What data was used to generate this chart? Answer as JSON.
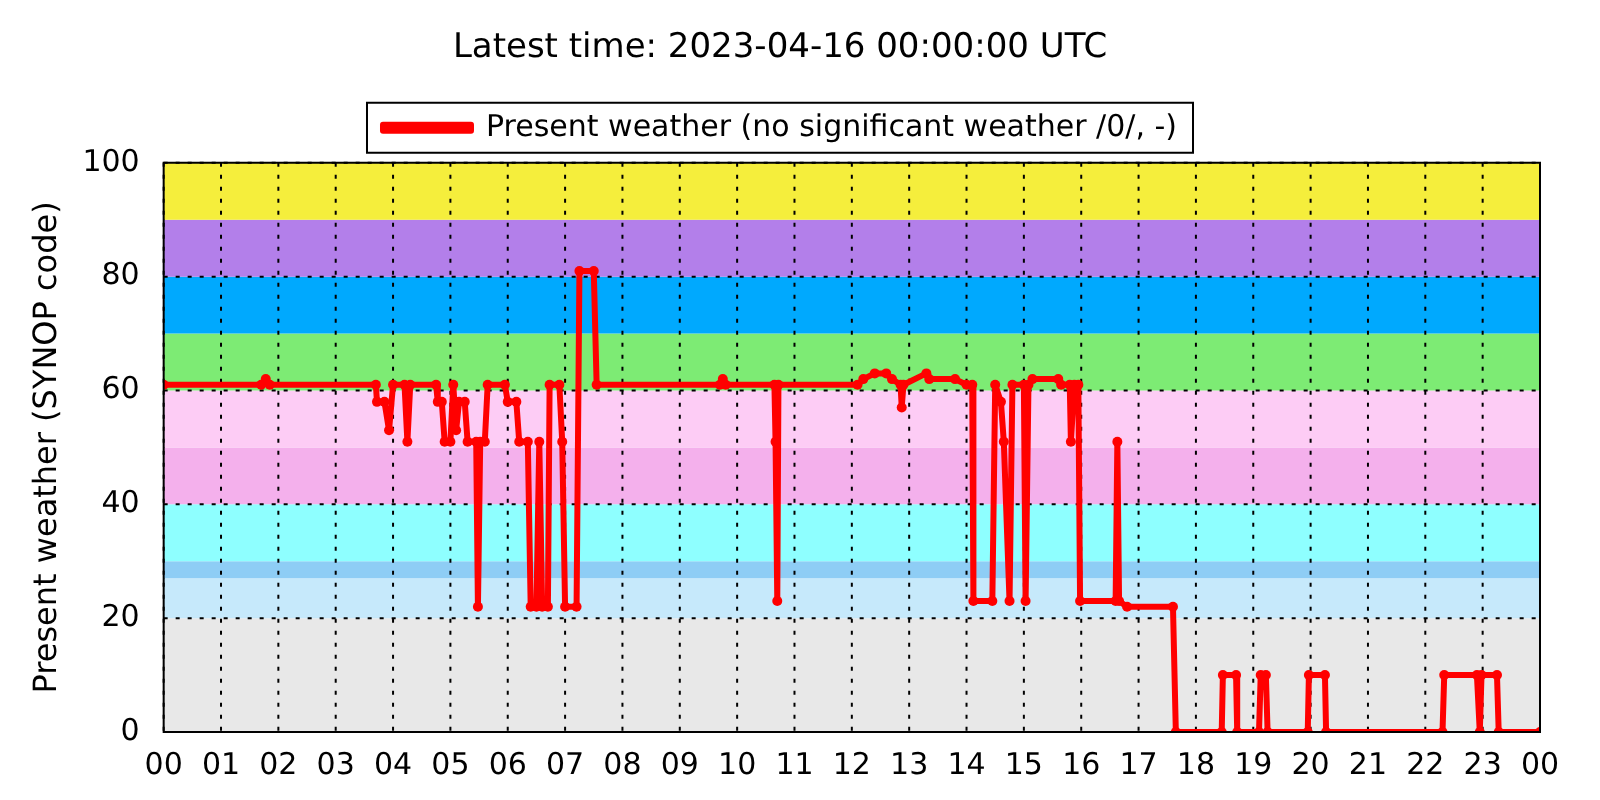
{
  "chart_data": {
    "type": "line",
    "title": "Latest time: 2023-04-16 00:00:00 UTC",
    "ylabel": "Present weather (SYNOP code)",
    "xlim": [
      0,
      24
    ],
    "xticks": [
      {
        "value": 0,
        "label": "00"
      },
      {
        "value": 1,
        "label": "01"
      },
      {
        "value": 2,
        "label": "02"
      },
      {
        "value": 3,
        "label": "03"
      },
      {
        "value": 4,
        "label": "04"
      },
      {
        "value": 5,
        "label": "05"
      },
      {
        "value": 6,
        "label": "06"
      },
      {
        "value": 7,
        "label": "07"
      },
      {
        "value": 8,
        "label": "08"
      },
      {
        "value": 9,
        "label": "09"
      },
      {
        "value": 10,
        "label": "10"
      },
      {
        "value": 11,
        "label": "11"
      },
      {
        "value": 12,
        "label": "12"
      },
      {
        "value": 13,
        "label": "13"
      },
      {
        "value": 14,
        "label": "14"
      },
      {
        "value": 15,
        "label": "15"
      },
      {
        "value": 16,
        "label": "16"
      },
      {
        "value": 17,
        "label": "17"
      },
      {
        "value": 18,
        "label": "18"
      },
      {
        "value": 19,
        "label": "19"
      },
      {
        "value": 20,
        "label": "20"
      },
      {
        "value": 21,
        "label": "21"
      },
      {
        "value": 22,
        "label": "22"
      },
      {
        "value": 23,
        "label": "23"
      },
      {
        "value": 24,
        "label": "00"
      }
    ],
    "ylim": [
      0,
      100
    ],
    "yticks": [
      0,
      20,
      40,
      60,
      80,
      100
    ],
    "grid": true,
    "legend": "top",
    "marker": "circle",
    "line_style": "solid",
    "bands": [
      {
        "axis": "y",
        "from": 0,
        "to": 20,
        "color": "#e8e8e8"
      },
      {
        "axis": "y",
        "from": 20,
        "to": 27,
        "color": "#c6e9fb"
      },
      {
        "axis": "y",
        "from": 27,
        "to": 30,
        "color": "#8ecdf5"
      },
      {
        "axis": "y",
        "from": 30,
        "to": 40,
        "color": "#8effff"
      },
      {
        "axis": "y",
        "from": 40,
        "to": 50,
        "color": "#f4b0ec"
      },
      {
        "axis": "y",
        "from": 50,
        "to": 60,
        "color": "#fdccf5"
      },
      {
        "axis": "y",
        "from": 60,
        "to": 70,
        "color": "#7deb74"
      },
      {
        "axis": "y",
        "from": 70,
        "to": 80,
        "color": "#00a9fe"
      },
      {
        "axis": "y",
        "from": 80,
        "to": 90,
        "color": "#b37fea"
      },
      {
        "axis": "y",
        "from": 90,
        "to": 100,
        "color": "#f5ee3c"
      }
    ],
    "series": [
      {
        "name": "Present weather (no significant weather /0/, -)",
        "color": "#ff0000",
        "x": [
          0,
          1.7,
          1.78,
          1.85,
          3.7,
          3.72,
          3.85,
          3.93,
          4.0,
          4.2,
          4.25,
          4.3,
          4.75,
          4.78,
          4.85,
          4.9,
          5.0,
          5.05,
          5.1,
          5.15,
          5.25,
          5.3,
          5.45,
          5.48,
          5.52,
          5.6,
          5.65,
          5.95,
          6.0,
          6.15,
          6.2,
          6.35,
          6.4,
          6.5,
          6.55,
          6.6,
          6.7,
          6.73,
          6.9,
          6.95,
          7.0,
          7.2,
          7.25,
          7.5,
          7.55,
          9.7,
          9.75,
          9.8,
          10.65,
          10.67,
          10.7,
          10.72,
          12.1,
          12.2,
          12.4,
          12.6,
          12.7,
          12.85,
          12.87,
          12.9,
          13.3,
          13.35,
          13.8,
          14.0,
          14.1,
          14.12,
          14.45,
          14.5,
          14.6,
          14.65,
          14.75,
          14.8,
          15.0,
          15.03,
          15.08,
          15.15,
          15.6,
          15.65,
          15.8,
          15.82,
          15.88,
          15.95,
          15.98,
          16.6,
          16.63,
          16.66,
          16.8,
          17.6,
          17.65,
          18.45,
          18.47,
          18.7,
          18.72,
          19.1,
          19.13,
          19.22,
          19.25,
          19.95,
          19.97,
          20.25,
          20.27,
          22.3,
          22.33,
          22.9,
          22.95,
          22.98,
          23.25,
          23.28,
          24
        ],
        "values": [
          61,
          61,
          62,
          61,
          61,
          58,
          58,
          53,
          61,
          61,
          51,
          61,
          61,
          58,
          58,
          51,
          51,
          61,
          53,
          58,
          58,
          51,
          51,
          22,
          51,
          51,
          61,
          61,
          58,
          58,
          51,
          51,
          22,
          22,
          51,
          22,
          22,
          61,
          61,
          51,
          22,
          22,
          81,
          81,
          61,
          61,
          62,
          61,
          61,
          51,
          23,
          61,
          61,
          62,
          63,
          63,
          62,
          61,
          57,
          61,
          63,
          62,
          62,
          61,
          61,
          23,
          23,
          61,
          58,
          51,
          23,
          61,
          61,
          23,
          61,
          62,
          62,
          61,
          61,
          51,
          61,
          61,
          23,
          23,
          51,
          23,
          22,
          22,
          0,
          0,
          10,
          10,
          0,
          0,
          10,
          10,
          0,
          0,
          10,
          10,
          0,
          0,
          10,
          10,
          0,
          10,
          10,
          0,
          0
        ]
      }
    ]
  }
}
